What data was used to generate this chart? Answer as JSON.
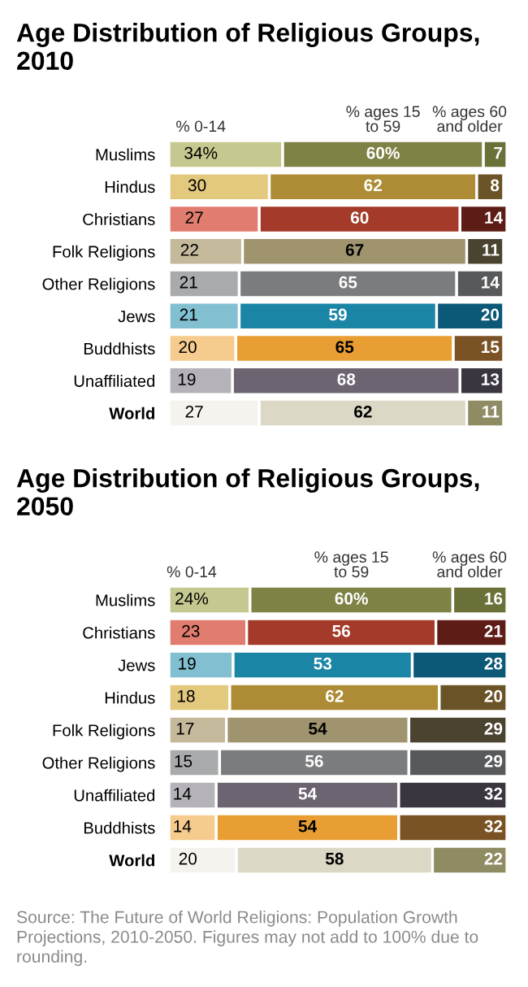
{
  "chart_data": [
    {
      "type": "bar",
      "orientation": "horizontal",
      "stacked": true,
      "title": "Age Distribution of Religious Groups, 2010",
      "legend": "top",
      "categories": [
        "Muslims",
        "Hindus",
        "Christians",
        "Folk Religions",
        "Other Religions",
        "Jews",
        "Buddhists",
        "Unaffiliated",
        "World"
      ],
      "series": [
        {
          "name": "% 0-14",
          "values": [
            34,
            30,
            27,
            22,
            21,
            21,
            20,
            19,
            27
          ],
          "value_labels": [
            "34%",
            "30",
            "27",
            "22",
            "21",
            "21",
            "20",
            "19",
            "27"
          ],
          "colors": [
            "#c5c98f",
            "#e3c97e",
            "#e07d6e",
            "#c4b99b",
            "#a9aaac",
            "#82c0d1",
            "#f5cb8e",
            "#b5b2b9",
            "#f4f3ee"
          ]
        },
        {
          "name": "% ages 15 to 59",
          "values": [
            60,
            62,
            60,
            67,
            65,
            59,
            65,
            68,
            62
          ],
          "value_labels": [
            "60%",
            "62",
            "60",
            "67",
            "65",
            "59",
            "65",
            "68",
            "62"
          ],
          "colors": [
            "#7f8245",
            "#ad8c35",
            "#a33a2a",
            "#a0946f",
            "#7b7c7e",
            "#1a85a5",
            "#e99e33",
            "#6c6470",
            "#dcd8c6"
          ]
        },
        {
          "name": "% ages 60 and older",
          "values": [
            7,
            8,
            14,
            11,
            14,
            20,
            15,
            13,
            11
          ],
          "value_labels": [
            "7",
            "8",
            "14",
            "11",
            "14",
            "20",
            "15",
            "13",
            "11"
          ],
          "colors": [
            "#6b7038",
            "#6a5326",
            "#5e1c16",
            "#4a4330",
            "#58595b",
            "#0b5877",
            "#7a5224",
            "#3b3540",
            "#8f8b62"
          ]
        }
      ]
    },
    {
      "type": "bar",
      "orientation": "horizontal",
      "stacked": true,
      "title": "Age Distribution of Religious Groups, 2050",
      "legend": "top",
      "categories": [
        "Muslims",
        "Christians",
        "Jews",
        "Hindus",
        "Folk Religions",
        "Other Religions",
        "Unaffiliated",
        "Buddhists",
        "World"
      ],
      "series": [
        {
          "name": "% 0-14",
          "values": [
            24,
            23,
            19,
            18,
            17,
            15,
            14,
            14,
            20
          ],
          "value_labels": [
            "24%",
            "23",
            "19",
            "18",
            "17",
            "15",
            "14",
            "14",
            "20"
          ],
          "colors": [
            "#c5c98f",
            "#e07d6e",
            "#82c0d1",
            "#e3c97e",
            "#c4b99b",
            "#a9aaac",
            "#b5b2b9",
            "#f5cb8e",
            "#f4f3ee"
          ]
        },
        {
          "name": "% ages 15 to 59",
          "values": [
            60,
            56,
            53,
            62,
            54,
            56,
            54,
            54,
            58
          ],
          "value_labels": [
            "60%",
            "56",
            "53",
            "62",
            "54",
            "56",
            "54",
            "54",
            "58"
          ],
          "colors": [
            "#7f8245",
            "#a33a2a",
            "#1a85a5",
            "#ad8c35",
            "#a0946f",
            "#7b7c7e",
            "#6c6470",
            "#e99e33",
            "#dcd8c6"
          ]
        },
        {
          "name": "% ages 60 and older",
          "values": [
            16,
            21,
            28,
            20,
            29,
            29,
            32,
            32,
            22
          ],
          "value_labels": [
            "16",
            "21",
            "28",
            "20",
            "29",
            "29",
            "32",
            "32",
            "22"
          ],
          "colors": [
            "#6b7038",
            "#5e1c16",
            "#0b5877",
            "#6a5326",
            "#4a4330",
            "#58595b",
            "#3b3540",
            "#7a5224",
            "#8f8b62"
          ]
        }
      ],
      "annotations": [
        "Source: The Future of World Religions: Population Growth Projections, 2010-2050. Figures may not add to 100% due to rounding."
      ]
    }
  ]
}
